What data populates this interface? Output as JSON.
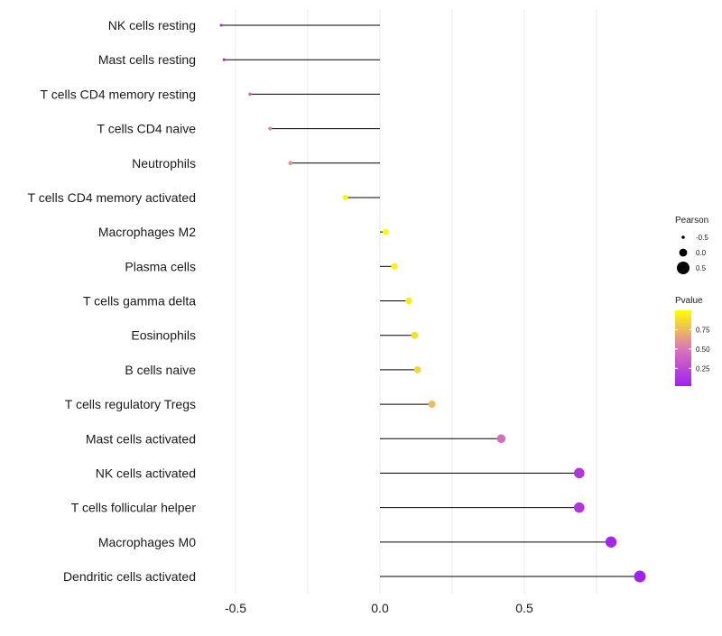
{
  "chart_data": {
    "type": "lollipop",
    "title": "",
    "xlabel": "",
    "ylabel": "",
    "xlim": [
      -0.55,
      0.9
    ],
    "x_ticks": [
      -0.5,
      0.0,
      0.5
    ],
    "x_tick_labels": [
      "-0.5",
      "0.0",
      "0.5"
    ],
    "grid": true,
    "baseline": 0,
    "categories": [
      "NK cells resting",
      "Mast cells resting",
      "T cells CD4 memory resting",
      "T cells CD4 naive",
      "Neutrophils",
      "T cells CD4 memory activated",
      "Macrophages M2",
      "Plasma cells",
      "T cells gamma delta",
      "Eosinophils",
      "B cells naive",
      "T cells regulatory  Tregs ",
      "Mast cells activated",
      "NK cells activated",
      "T cells follicular helper",
      "Macrophages M0",
      "Dendritic cells activated"
    ],
    "values": [
      -0.55,
      -0.54,
      -0.45,
      -0.38,
      -0.31,
      -0.12,
      0.02,
      0.05,
      0.1,
      0.12,
      0.13,
      0.18,
      0.42,
      0.69,
      0.69,
      0.8,
      0.9
    ],
    "pvalues": [
      0.05,
      0.05,
      0.45,
      0.55,
      0.6,
      0.95,
      0.98,
      0.95,
      0.92,
      0.88,
      0.85,
      0.75,
      0.45,
      0.15,
      0.15,
      0.05,
      0.03
    ],
    "legend": {
      "size_title": "Pearson",
      "size_labels": [
        "-0.5",
        "0.0",
        "0.5"
      ],
      "size_values": [
        -0.5,
        0.0,
        0.5
      ],
      "color_title": "Pvalue",
      "color_ticks": [
        "0.75",
        "0.50",
        "0.25"
      ],
      "color_tick_values": [
        0.75,
        0.5,
        0.25
      ],
      "color_range": [
        0.02,
        1.0
      ],
      "placement": "right"
    },
    "colors": {
      "low": "#a020f0",
      "high": "#ffff00",
      "line": "#000000",
      "grid": "#ebebeb"
    }
  }
}
